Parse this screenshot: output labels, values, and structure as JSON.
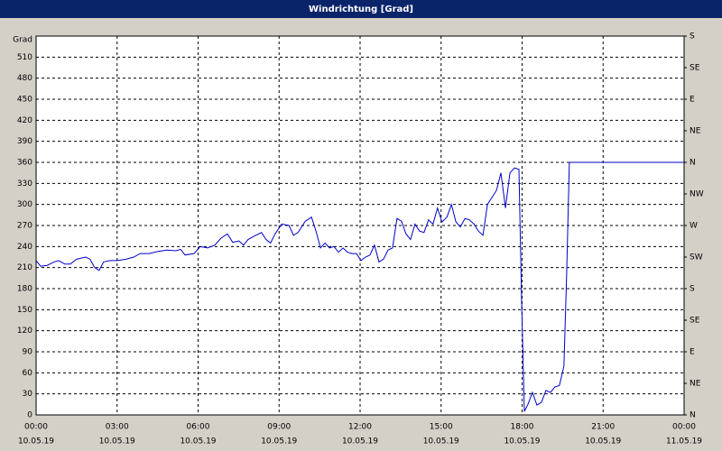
{
  "chart_data": {
    "type": "line",
    "title": "Windrichtung [Grad]",
    "y_label": "Grad",
    "x": [
      0,
      10,
      24,
      40,
      50,
      64,
      76,
      90,
      110,
      120,
      130,
      140,
      150,
      164,
      180,
      200,
      217,
      231,
      251,
      271,
      291,
      311,
      321,
      331,
      351,
      365,
      381,
      397,
      411,
      425,
      437,
      451,
      461,
      471,
      485,
      501,
      511,
      521,
      531,
      546,
      562,
      572,
      582,
      598,
      612,
      622,
      632,
      642,
      652,
      662,
      672,
      682,
      692,
      702,
      712,
      722,
      732,
      742,
      752,
      762,
      772,
      782,
      792,
      802,
      812,
      822,
      832,
      842,
      852,
      862,
      872,
      882,
      892,
      902,
      913,
      923,
      933,
      943,
      953,
      963,
      973,
      983,
      993,
      1003,
      1013,
      1023,
      1033,
      1043,
      1053,
      1063,
      1073,
      1079,
      1085,
      1093,
      1103,
      1113,
      1123,
      1133,
      1143,
      1153,
      1163,
      1173,
      1179,
      1185,
      1440
    ],
    "values": [
      220,
      212,
      213,
      218,
      220,
      215,
      215,
      222,
      225,
      222,
      210,
      206,
      218,
      220,
      220,
      222,
      225,
      230,
      230,
      233,
      235,
      234,
      236,
      228,
      230,
      240,
      238,
      242,
      252,
      258,
      246,
      248,
      242,
      250,
      255,
      260,
      250,
      245,
      258,
      272,
      270,
      256,
      260,
      276,
      282,
      262,
      238,
      245,
      238,
      240,
      232,
      238,
      232,
      230,
      230,
      220,
      225,
      228,
      242,
      218,
      222,
      235,
      238,
      280,
      276,
      258,
      250,
      272,
      262,
      260,
      278,
      272,
      295,
      275,
      282,
      300,
      275,
      268,
      280,
      278,
      272,
      262,
      256,
      300,
      310,
      320,
      345,
      295,
      345,
      352,
      350,
      160,
      5,
      15,
      32,
      14,
      18,
      35,
      32,
      40,
      42,
      70,
      200,
      360,
      360
    ],
    "color": "#0000cc",
    "xlim": [
      0,
      1440
    ],
    "xticks": [
      {
        "value": 0,
        "label": "00:00",
        "date": "10.05.19"
      },
      {
        "value": 180,
        "label": "03:00",
        "date": "10.05.19"
      },
      {
        "value": 360,
        "label": "06:00",
        "date": "10.05.19"
      },
      {
        "value": 540,
        "label": "09:00",
        "date": "10.05.19"
      },
      {
        "value": 720,
        "label": "12:00",
        "date": "10.05.19"
      },
      {
        "value": 900,
        "label": "15:00",
        "date": "10.05.19"
      },
      {
        "value": 1080,
        "label": "18:00",
        "date": "10.05.19"
      },
      {
        "value": 1260,
        "label": "21:00",
        "date": "10.05.19"
      },
      {
        "value": 1440,
        "label": "00:00",
        "date": "11.05.19"
      }
    ],
    "ylim": [
      0,
      540
    ],
    "yticks": [
      0,
      30,
      60,
      90,
      120,
      150,
      180,
      210,
      240,
      270,
      300,
      330,
      360,
      390,
      420,
      450,
      480,
      510
    ],
    "y2lim": [
      0,
      540
    ],
    "y2ticks": [
      {
        "value": 0,
        "label": "N"
      },
      {
        "value": 45,
        "label": "NE"
      },
      {
        "value": 90,
        "label": "E"
      },
      {
        "value": 135,
        "label": "SE"
      },
      {
        "value": 180,
        "label": "S"
      },
      {
        "value": 225,
        "label": "SW"
      },
      {
        "value": 270,
        "label": "W"
      },
      {
        "value": 315,
        "label": "NW"
      },
      {
        "value": 360,
        "label": "N"
      },
      {
        "value": 405,
        "label": "NE"
      },
      {
        "value": 450,
        "label": "E"
      },
      {
        "value": 495,
        "label": "SE"
      },
      {
        "value": 540,
        "label": "S"
      }
    ],
    "grid": true
  }
}
